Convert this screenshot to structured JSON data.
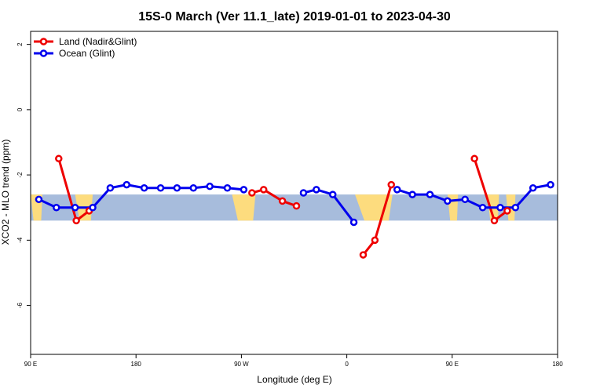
{
  "chart_data": {
    "type": "line",
    "title": "15S-0 March (Ver 11.1_late)   2019-01-01 to 2023-04-30",
    "xlabel": "Longitude (deg E)",
    "ylabel": "XCO2 - MLO trend (ppm)",
    "xlim": [
      90,
      540
    ],
    "ylim": [
      -7.5,
      2.4
    ],
    "x_ticks": [
      {
        "value": 90,
        "label": "90 E"
      },
      {
        "value": 180,
        "label": "180"
      },
      {
        "value": 270,
        "label": "90 W"
      },
      {
        "value": 360,
        "label": "0"
      },
      {
        "value": 450,
        "label": "90 E"
      },
      {
        "value": 540,
        "label": "180"
      }
    ],
    "y_ticks": [
      {
        "value": 2,
        "label": "2"
      },
      {
        "value": 0,
        "label": "0"
      },
      {
        "value": -2,
        "label": "-2"
      },
      {
        "value": -4,
        "label": "-4"
      },
      {
        "value": -6,
        "label": "-6"
      }
    ],
    "latitude_band": [
      -15,
      0
    ],
    "band_colors": {
      "ocean": "#a7bcdc",
      "land": "#fddc7e"
    },
    "legend": {
      "position": "top-left"
    },
    "series": [
      {
        "name": "Land (Nadir&Glint)",
        "color": "#ee0000",
        "segments": [
          [
            [
              114,
              -1.5
            ],
            [
              129,
              -3.4
            ],
            [
              140,
              -3.1
            ]
          ],
          [
            [
              279,
              -2.55
            ],
            [
              289,
              -2.45
            ],
            [
              305,
              -2.8
            ],
            [
              317,
              -2.95
            ]
          ],
          [
            [
              374,
              -4.45
            ],
            [
              384,
              -4.0
            ],
            [
              398,
              -2.3
            ]
          ],
          [
            [
              469,
              -1.5
            ],
            [
              486,
              -3.4
            ],
            [
              497,
              -3.1
            ]
          ]
        ]
      },
      {
        "name": "Ocean (Glint)",
        "color": "#0000ee",
        "segments": [
          [
            [
              97,
              -2.75
            ],
            [
              112,
              -3.0
            ],
            [
              128,
              -3.0
            ],
            [
              143,
              -3.0
            ],
            [
              158,
              -2.4
            ],
            [
              172,
              -2.3
            ],
            [
              187,
              -2.4
            ],
            [
              201,
              -2.4
            ],
            [
              215,
              -2.4
            ],
            [
              229,
              -2.4
            ],
            [
              243,
              -2.35
            ],
            [
              258,
              -2.4
            ],
            [
              272,
              -2.45
            ]
          ],
          [
            [
              323,
              -2.55
            ],
            [
              334,
              -2.45
            ],
            [
              348,
              -2.6
            ],
            [
              366,
              -3.45
            ]
          ],
          [
            [
              403,
              -2.45
            ],
            [
              416,
              -2.6
            ],
            [
              431,
              -2.6
            ],
            [
              446,
              -2.8
            ],
            [
              461,
              -2.75
            ],
            [
              476,
              -3.0
            ],
            [
              491,
              -3.0
            ],
            [
              504,
              -3.0
            ],
            [
              519,
              -2.4
            ],
            [
              534,
              -2.3
            ]
          ]
        ]
      }
    ]
  }
}
